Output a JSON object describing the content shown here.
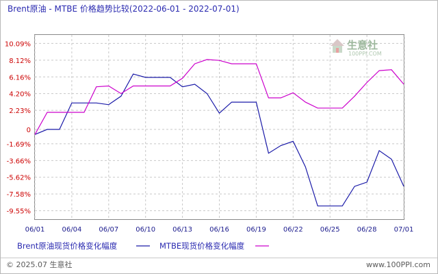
{
  "chart_data": {
    "type": "line",
    "title": "Brent原油 - MTBE 价格趋势比较(2022-06-01 - 2022-07-01)",
    "y_tick_labels": [
      "10.09%",
      "8.12%",
      "6.16%",
      "4.20%",
      "2.23%",
      "0",
      "-1.69%",
      "-3.66%",
      "-5.62%",
      "-7.58%",
      "-9.55%"
    ],
    "y_ticks": [
      10.09,
      8.12,
      6.16,
      4.2,
      2.23,
      0,
      -1.69,
      -3.66,
      -5.62,
      -7.58,
      -9.55
    ],
    "ylim": [
      -10.55,
      11.09
    ],
    "x_tick_labels": [
      "06/01",
      "06/04",
      "06/07",
      "06/10",
      "06/13",
      "06/16",
      "06/19",
      "06/22",
      "06/25",
      "06/28",
      "07/01"
    ],
    "x_categories": [
      "06/01",
      "06/02",
      "06/03",
      "06/04",
      "06/05",
      "06/06",
      "06/07",
      "06/08",
      "06/09",
      "06/10",
      "06/11",
      "06/12",
      "06/13",
      "06/14",
      "06/15",
      "06/16",
      "06/17",
      "06/18",
      "06/19",
      "06/20",
      "06/21",
      "06/22",
      "06/23",
      "06/24",
      "06/25",
      "06/26",
      "06/27",
      "06/28",
      "06/29",
      "06/30",
      "07/01"
    ],
    "grid": true,
    "legend_position": "bottom-left",
    "series": [
      {
        "name": "Brent原油现货价格变化幅度",
        "color": "#1a1aa8",
        "values": [
          -0.6,
          0.0,
          0.0,
          3.1,
          3.1,
          3.1,
          2.9,
          3.9,
          6.5,
          6.1,
          6.1,
          6.1,
          5.0,
          5.3,
          4.2,
          1.9,
          3.2,
          3.2,
          3.2,
          -2.8,
          -1.9,
          -1.4,
          -4.4,
          -9.0,
          -9.0,
          -9.0,
          -6.7,
          -6.2,
          -2.5,
          -3.5,
          -6.7
        ]
      },
      {
        "name": "MTBE现货价格变化幅度",
        "color": "#cc00cc",
        "values": [
          -0.6,
          2.0,
          2.0,
          2.0,
          2.0,
          5.0,
          5.1,
          4.2,
          5.1,
          5.1,
          5.1,
          5.1,
          6.0,
          7.7,
          8.2,
          8.1,
          7.7,
          7.7,
          7.7,
          3.7,
          3.7,
          4.3,
          3.2,
          2.5,
          2.5,
          2.5,
          3.9,
          5.5,
          6.9,
          7.0,
          5.3
        ]
      }
    ]
  },
  "footer": {
    "copyright": "© 2025.07 生意社",
    "url": "www.100PPI.com"
  },
  "watermark": {
    "text": "生意社",
    "sub": "100PPI.COM"
  }
}
